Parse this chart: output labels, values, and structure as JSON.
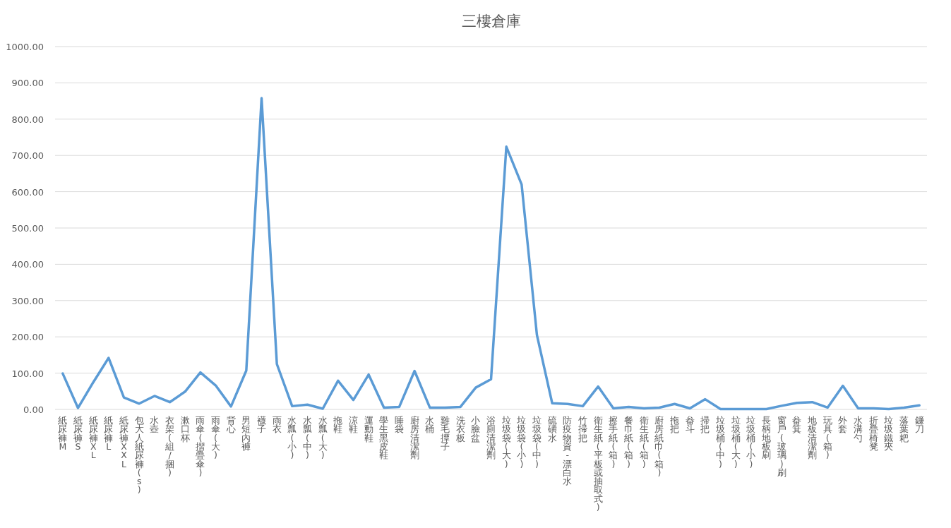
{
  "chart_data": {
    "type": "line",
    "title": "三樓倉庫",
    "categories": [
      "紙尿褲M",
      "紙尿褲S",
      "紙尿褲XL",
      "紙尿褲L",
      "紙尿褲XXL",
      "包大人紙尿褲(s)",
      "水壺",
      "衣架(組/捆)",
      "漱口杯",
      "雨傘(摺疊傘)",
      "雨傘(大)",
      "背心",
      "男短內褲",
      "襪子",
      "雨衣",
      "水瓢(小)",
      "水瓢(中)",
      "水瓢(大)",
      "拖鞋",
      "涼鞋",
      "運動鞋",
      "學生黑皮鞋",
      "睡袋",
      "廚房清潔劑",
      "水桶",
      "雞毛撢子",
      "洗衣板",
      "小臉盆",
      "浴廁清潔劑",
      "垃圾袋(大)",
      "垃圾袋(小)",
      "垃圾袋(中)",
      "硫磺水",
      "防疫物資-漂白水",
      "竹掃把",
      "衛生紙(平板或抽取式)",
      "擦手紙(箱)",
      "餐巾紙(箱)",
      "衛生紙(箱)",
      "廚房紙巾(箱)",
      "拖把",
      "畚斗",
      "掃把",
      "垃圾桶(中)",
      "垃圾桶(大)",
      "垃圾桶(小)",
      "長柄地板刷",
      "窗戶(玻璃)刷",
      "畚箕",
      "地板清潔劑",
      "玩具(箱)",
      "外套",
      "水溝勺",
      "折疊椅凳",
      "垃圾鐵夾",
      "落葉耙",
      "鐮刀"
    ],
    "series": [
      {
        "color": "#5b9bd5",
        "values": [
          99,
          4,
          75,
          142,
          33,
          16,
          37,
          20,
          49,
          102,
          66,
          8,
          107,
          858,
          125,
          9,
          13,
          2,
          79,
          26,
          96,
          5,
          7,
          106,
          5,
          5,
          7,
          60,
          83,
          724,
          620,
          205,
          17,
          15,
          9,
          63,
          3,
          7,
          3,
          5,
          15,
          3,
          28,
          1,
          1,
          1,
          1,
          10,
          18,
          20,
          5,
          65,
          3,
          3,
          1,
          5,
          11
        ]
      }
    ],
    "ylim": [
      0,
      1000
    ],
    "yticks": [
      {
        "value": 0,
        "label": "0.00"
      },
      {
        "value": 100,
        "label": "100.00"
      },
      {
        "value": 200,
        "label": "200.00"
      },
      {
        "value": 300,
        "label": "300.00"
      },
      {
        "value": 400,
        "label": "400.00"
      },
      {
        "value": 500,
        "label": "500.00"
      },
      {
        "value": 600,
        "label": "600.00"
      },
      {
        "value": 700,
        "label": "700.00"
      },
      {
        "value": 800,
        "label": "800.00"
      },
      {
        "value": 900,
        "label": "900.00"
      },
      {
        "value": 1000,
        "label": "1000.00"
      }
    ],
    "grid": "y",
    "marker": "none",
    "line_style": "solid"
  }
}
